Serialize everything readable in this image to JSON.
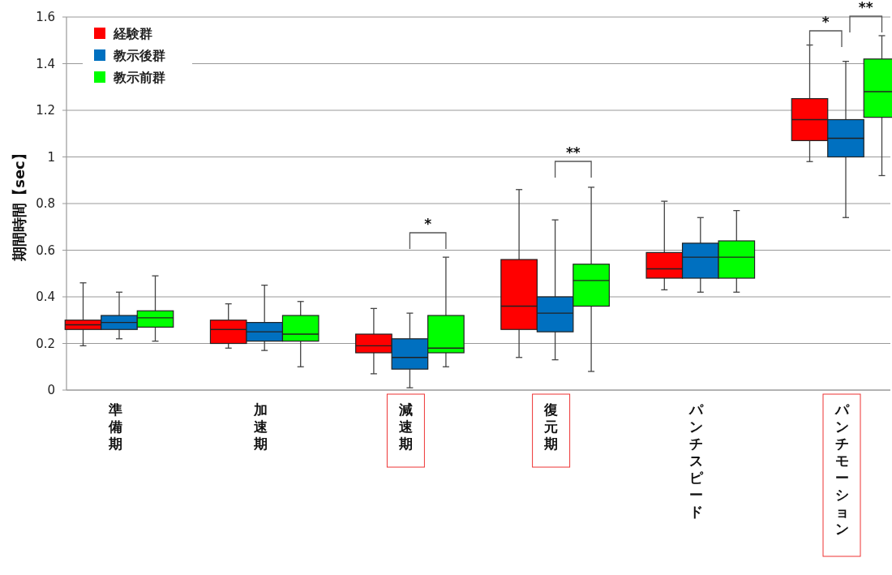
{
  "chart_data": {
    "type": "box",
    "ylabel": "期間時間【sec】",
    "categories": [
      "準備期",
      "加速期",
      "減速期",
      "復元期",
      "パンチスピード",
      "パンチモーション"
    ],
    "series": [
      {
        "name": "経験群",
        "color": "#ff0000",
        "boxes": [
          {
            "low": 0.19,
            "q1": 0.26,
            "median": 0.28,
            "q3": 0.3,
            "high": 0.46
          },
          {
            "low": 0.18,
            "q1": 0.2,
            "median": 0.26,
            "q3": 0.3,
            "high": 0.37
          },
          {
            "low": 0.07,
            "q1": 0.16,
            "median": 0.19,
            "q3": 0.24,
            "high": 0.35
          },
          {
            "low": 0.14,
            "q1": 0.26,
            "median": 0.36,
            "q3": 0.56,
            "high": 0.86
          },
          {
            "low": 0.43,
            "q1": 0.48,
            "median": 0.52,
            "q3": 0.59,
            "high": 0.81
          },
          {
            "low": 0.98,
            "q1": 1.07,
            "median": 1.16,
            "q3": 1.25,
            "high": 1.48
          }
        ]
      },
      {
        "name": "教示後群",
        "color": "#0070c0",
        "boxes": [
          {
            "low": 0.22,
            "q1": 0.26,
            "median": 0.29,
            "q3": 0.32,
            "high": 0.42
          },
          {
            "low": 0.17,
            "q1": 0.21,
            "median": 0.25,
            "q3": 0.29,
            "high": 0.45
          },
          {
            "low": 0.01,
            "q1": 0.09,
            "median": 0.14,
            "q3": 0.22,
            "high": 0.33
          },
          {
            "low": 0.13,
            "q1": 0.25,
            "median": 0.33,
            "q3": 0.4,
            "high": 0.73
          },
          {
            "low": 0.42,
            "q1": 0.48,
            "median": 0.57,
            "q3": 0.63,
            "high": 0.74
          },
          {
            "low": 0.74,
            "q1": 1.0,
            "median": 1.08,
            "q3": 1.16,
            "high": 1.41
          }
        ]
      },
      {
        "name": "教示前群",
        "color": "#00ff00",
        "boxes": [
          {
            "low": 0.21,
            "q1": 0.27,
            "median": 0.31,
            "q3": 0.34,
            "high": 0.49
          },
          {
            "low": 0.1,
            "q1": 0.21,
            "median": 0.24,
            "q3": 0.32,
            "high": 0.38
          },
          {
            "low": 0.1,
            "q1": 0.16,
            "median": 0.18,
            "q3": 0.32,
            "high": 0.57
          },
          {
            "low": 0.08,
            "q1": 0.36,
            "median": 0.47,
            "q3": 0.54,
            "high": 0.87
          },
          {
            "low": 0.42,
            "q1": 0.48,
            "median": 0.57,
            "q3": 0.64,
            "high": 0.77
          },
          {
            "low": 0.92,
            "q1": 1.17,
            "median": 1.28,
            "q3": 1.42,
            "high": 1.52
          }
        ]
      }
    ],
    "ylim": [
      0,
      1.6
    ],
    "yticks": [
      0,
      0.2,
      0.4,
      0.6,
      0.8,
      1,
      1.2,
      1.4,
      1.6
    ],
    "grid": "y",
    "legend": "top left",
    "annotations": [
      "*",
      "**",
      "*",
      "**"
    ]
  }
}
